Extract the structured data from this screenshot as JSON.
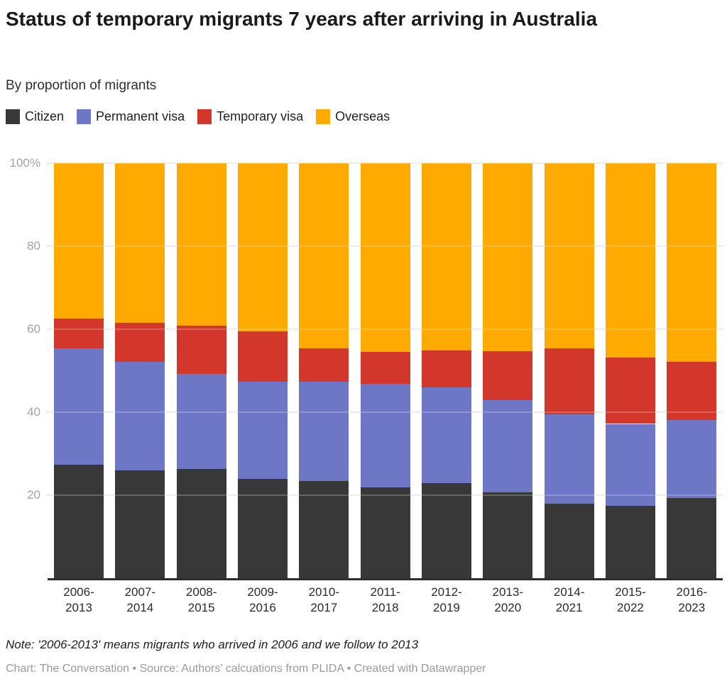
{
  "header": {
    "title": "Status of temporary migrants 7 years after arriving in Australia",
    "subtitle": "By proportion of migrants"
  },
  "legend": {
    "items": [
      {
        "label": "Citizen",
        "color": "#383838"
      },
      {
        "label": "Permanent visa",
        "color": "#6E77C5"
      },
      {
        "label": "Temporary visa",
        "color": "#D3362B"
      },
      {
        "label": "Overseas",
        "color": "#FFAA00"
      }
    ]
  },
  "chart_data": {
    "type": "bar",
    "stacked": true,
    "unit": "%",
    "title": "Status of temporary migrants 7 years after arriving in Australia",
    "subtitle": "By proportion of migrants",
    "xlabel": "",
    "ylabel": "",
    "ylim": [
      0,
      100
    ],
    "grid": "horizontal",
    "legend_position": "top",
    "categories": [
      "2006-2013",
      "2007-2014",
      "2008-2015",
      "2009-2016",
      "2010-2017",
      "2011-2018",
      "2012-2019",
      "2013-2020",
      "2014-2021",
      "2015-2022",
      "2016-2023"
    ],
    "series": [
      {
        "name": "Citizen",
        "color": "#383838",
        "values": [
          27.4,
          26.1,
          26.3,
          24.0,
          23.4,
          21.9,
          23.0,
          20.7,
          18.0,
          17.5,
          19.3
        ]
      },
      {
        "name": "Permanent visa",
        "color": "#6E77C5",
        "values": [
          28.0,
          26.0,
          22.9,
          23.4,
          23.9,
          24.9,
          23.0,
          22.2,
          21.5,
          19.7,
          18.8
        ]
      },
      {
        "name": "Temporary visa",
        "color": "#D3362B",
        "values": [
          7.2,
          9.4,
          11.7,
          12.1,
          8.0,
          7.7,
          8.9,
          11.8,
          15.9,
          16.0,
          14.0
        ]
      },
      {
        "name": "Overseas",
        "color": "#FFAA00",
        "values": [
          37.4,
          38.5,
          39.1,
          40.5,
          44.7,
          45.5,
          45.1,
          45.3,
          44.6,
          46.8,
          47.9
        ]
      }
    ],
    "yticks": [
      {
        "value": 100,
        "label": "100%"
      },
      {
        "value": 80,
        "label": "80"
      },
      {
        "value": 60,
        "label": "60"
      },
      {
        "value": 40,
        "label": "40"
      },
      {
        "value": 20,
        "label": "20"
      }
    ]
  },
  "footer": {
    "note": "Note: '2006-2013' means migrants who arrived in 2006 and we follow to 2013",
    "credit": "Chart: The Conversation • Source: Authors' calcuations from PLIDA  • Created with Datawrapper"
  },
  "colors": {
    "background": "#ffffff",
    "gridline": "#e7e7e7",
    "axis_line": "#2e2e2e",
    "y_tick_text": "#a3a3a3",
    "x_tick_text": "#2b2b2b",
    "title_text": "#1a1a1a",
    "credit_text": "#9b9b9b"
  }
}
